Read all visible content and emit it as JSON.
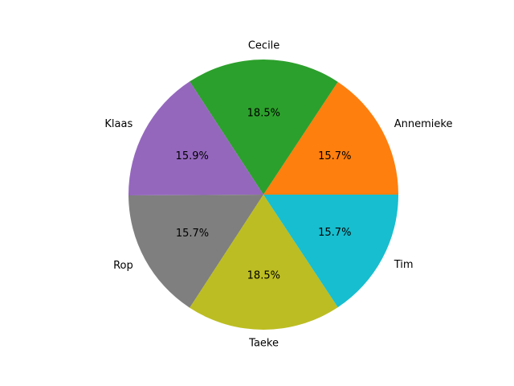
{
  "chart_data": {
    "type": "pie",
    "title": "",
    "start_angle_deg": 0,
    "direction": "counterclockwise",
    "slices": [
      {
        "label": "Annemieke",
        "percent": 15.7,
        "percent_label": "15.7%",
        "color": "#ff7f0e"
      },
      {
        "label": "Cecile",
        "percent": 18.5,
        "percent_label": "18.5%",
        "color": "#2ca02c"
      },
      {
        "label": "Klaas",
        "percent": 15.9,
        "percent_label": "15.9%",
        "color": "#9467bd"
      },
      {
        "label": "Rop",
        "percent": 15.7,
        "percent_label": "15.7%",
        "color": "#7f7f7f"
      },
      {
        "label": "Taeke",
        "percent": 18.5,
        "percent_label": "18.5%",
        "color": "#bcbd22"
      },
      {
        "label": "Tim",
        "percent": 15.7,
        "percent_label": "15.7%",
        "color": "#17becf"
      }
    ]
  }
}
